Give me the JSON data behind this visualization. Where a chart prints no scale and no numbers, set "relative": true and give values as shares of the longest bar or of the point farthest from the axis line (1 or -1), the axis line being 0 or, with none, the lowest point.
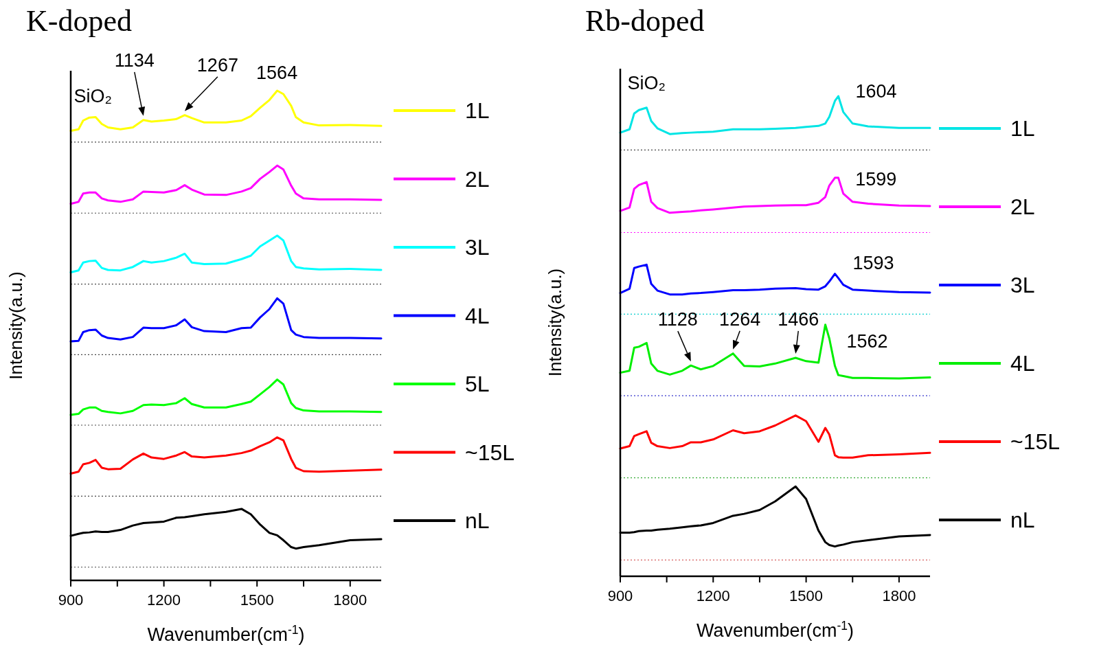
{
  "chart_data": [
    {
      "type": "line",
      "title": "K-doped",
      "xlabel": "Wavenumber(cm$^{-1}$)",
      "ylabel": "Intensity(a.u.)",
      "relative": true,
      "legend": "right",
      "xlim": [
        900,
        1900
      ],
      "xticks": [
        900,
        {
          "value": 1050,
          "label": null
        },
        1200,
        {
          "value": 1350,
          "label": null
        },
        1500,
        {
          "value": 1650,
          "label": null
        },
        1800
      ],
      "x": [
        900,
        925,
        940,
        960,
        980,
        1000,
        1020,
        1060,
        1100,
        1134,
        1160,
        1200,
        1240,
        1267,
        1290,
        1330,
        1400,
        1450,
        1480,
        1510,
        1540,
        1565,
        1585,
        1610,
        1625,
        1650,
        1700,
        1800,
        1900
      ],
      "series": [
        {
          "name": "1L",
          "color": "#ffff00",
          "values": [
            0.918,
            0.921,
            0.939,
            0.945,
            0.946,
            0.932,
            0.925,
            0.921,
            0.925,
            0.94,
            0.937,
            0.939,
            0.942,
            0.95,
            0.944,
            0.935,
            0.935,
            0.939,
            0.948,
            0.965,
            0.981,
            1.0,
            0.993,
            0.969,
            0.946,
            0.935,
            0.929,
            0.93,
            0.928
          ]
        },
        {
          "name": "2L",
          "color": "#ff00ff",
          "values": [
            0.769,
            0.773,
            0.79,
            0.792,
            0.792,
            0.78,
            0.776,
            0.773,
            0.778,
            0.794,
            0.793,
            0.792,
            0.797,
            0.807,
            0.798,
            0.788,
            0.787,
            0.794,
            0.801,
            0.82,
            0.834,
            0.847,
            0.839,
            0.806,
            0.79,
            0.78,
            0.778,
            0.778,
            0.777
          ]
        },
        {
          "name": "3L",
          "color": "#00ffff",
          "values": [
            0.629,
            0.633,
            0.649,
            0.652,
            0.653,
            0.638,
            0.634,
            0.633,
            0.64,
            0.652,
            0.649,
            0.652,
            0.659,
            0.667,
            0.649,
            0.646,
            0.647,
            0.656,
            0.663,
            0.682,
            0.694,
            0.704,
            0.694,
            0.652,
            0.64,
            0.637,
            0.635,
            0.636,
            0.634
          ]
        },
        {
          "name": "4L",
          "color": "#0000ff",
          "values": [
            0.488,
            0.489,
            0.507,
            0.511,
            0.512,
            0.5,
            0.495,
            0.492,
            0.497,
            0.516,
            0.515,
            0.515,
            0.521,
            0.533,
            0.517,
            0.509,
            0.507,
            0.515,
            0.516,
            0.537,
            0.554,
            0.576,
            0.565,
            0.511,
            0.502,
            0.497,
            0.495,
            0.495,
            0.494
          ]
        },
        {
          "name": "5L",
          "color": "#00ff00",
          "values": [
            0.338,
            0.34,
            0.349,
            0.353,
            0.353,
            0.346,
            0.344,
            0.341,
            0.346,
            0.358,
            0.359,
            0.358,
            0.362,
            0.372,
            0.36,
            0.353,
            0.353,
            0.36,
            0.365,
            0.38,
            0.395,
            0.41,
            0.4,
            0.362,
            0.352,
            0.347,
            0.345,
            0.345,
            0.344
          ]
        },
        {
          "name": "~15L",
          "color": "#ff0000",
          "values": [
            0.218,
            0.222,
            0.237,
            0.24,
            0.246,
            0.23,
            0.227,
            0.228,
            0.247,
            0.259,
            0.251,
            0.248,
            0.255,
            0.262,
            0.253,
            0.251,
            0.255,
            0.26,
            0.265,
            0.274,
            0.282,
            0.292,
            0.286,
            0.248,
            0.23,
            0.223,
            0.222,
            0.224,
            0.226
          ]
        },
        {
          "name": "nL",
          "color": "#000000",
          "values": [
            0.091,
            0.095,
            0.097,
            0.098,
            0.1,
            0.099,
            0.099,
            0.103,
            0.112,
            0.117,
            0.118,
            0.12,
            0.128,
            0.129,
            0.131,
            0.135,
            0.14,
            0.146,
            0.135,
            0.114,
            0.097,
            0.092,
            0.082,
            0.068,
            0.065,
            0.068,
            0.072,
            0.082,
            0.084
          ]
        }
      ],
      "ref_lines": [
        {
          "axis": "y",
          "value": 0.895,
          "line_style": "dotted",
          "color": "#444444"
        },
        {
          "axis": "y",
          "value": 0.75,
          "line_style": "dotted",
          "color": "#444444"
        },
        {
          "axis": "y",
          "value": 0.605,
          "line_style": "dotted",
          "color": "#444444"
        },
        {
          "axis": "y",
          "value": 0.461,
          "line_style": "dotted",
          "color": "#444444"
        },
        {
          "axis": "y",
          "value": 0.317,
          "line_style": "dotted",
          "color": "#444444"
        },
        {
          "axis": "y",
          "value": 0.172,
          "line_style": "dotted",
          "color": "#444444"
        },
        {
          "axis": "y",
          "value": 0.027,
          "line_style": "dotted",
          "color": "#444444"
        }
      ],
      "annotations": [
        {
          "text": "SiO₂",
          "x": 980,
          "y": 0.946
        },
        {
          "text": "1134",
          "x": 1134,
          "y": 0.94
        },
        {
          "text": "1267",
          "x": 1267,
          "y": 0.95
        },
        {
          "text": "1564",
          "x": 1564,
          "y": 1.0
        }
      ]
    },
    {
      "type": "line",
      "title": "Rb-doped",
      "xlabel": "Wavenumber(cm$^{-1}$)",
      "ylabel": "Intensity(a.u.)",
      "relative": true,
      "legend": "right",
      "xlim": [
        900,
        1900
      ],
      "xticks": [
        900,
        {
          "value": 1050,
          "label": null
        },
        1200,
        {
          "value": 1350,
          "label": null
        },
        1500,
        {
          "value": 1650,
          "label": null
        },
        1800
      ],
      "x": [
        900,
        930,
        945,
        960,
        985,
        1000,
        1020,
        1060,
        1100,
        1128,
        1160,
        1200,
        1264,
        1300,
        1350,
        1400,
        1466,
        1500,
        1540,
        1562,
        1575,
        1593,
        1604,
        1620,
        1650,
        1700,
        1800,
        1900
      ],
      "series": [
        {
          "name": "1L",
          "color": "#00e5e5",
          "values": [
            0.924,
            0.931,
            0.964,
            0.971,
            0.976,
            0.948,
            0.933,
            0.921,
            0.923,
            0.924,
            0.925,
            0.926,
            0.931,
            0.931,
            0.931,
            0.932,
            0.934,
            0.936,
            0.938,
            0.943,
            0.957,
            0.99,
            1.0,
            0.967,
            0.943,
            0.937,
            0.934,
            0.934
          ]
        },
        {
          "name": "2L",
          "color": "#ff00ff",
          "values": [
            0.761,
            0.768,
            0.807,
            0.815,
            0.821,
            0.78,
            0.767,
            0.757,
            0.759,
            0.76,
            0.762,
            0.764,
            0.768,
            0.77,
            0.771,
            0.772,
            0.773,
            0.773,
            0.778,
            0.79,
            0.814,
            0.83,
            0.83,
            0.797,
            0.78,
            0.776,
            0.772,
            0.771
          ]
        },
        {
          "name": "3L",
          "color": "#0000ff",
          "values": [
            0.59,
            0.599,
            0.642,
            0.645,
            0.649,
            0.609,
            0.595,
            0.587,
            0.587,
            0.589,
            0.59,
            0.592,
            0.596,
            0.596,
            0.597,
            0.599,
            0.6,
            0.598,
            0.597,
            0.604,
            0.614,
            0.63,
            0.621,
            0.607,
            0.597,
            0.595,
            0.592,
            0.591
          ]
        },
        {
          "name": "4L",
          "color": "#00ee00",
          "values": [
            0.424,
            0.428,
            0.476,
            0.478,
            0.486,
            0.443,
            0.428,
            0.42,
            0.428,
            0.439,
            0.431,
            0.438,
            0.464,
            0.438,
            0.437,
            0.443,
            0.455,
            0.448,
            0.445,
            0.524,
            0.495,
            0.438,
            0.419,
            0.417,
            0.413,
            0.413,
            0.412,
            0.414
          ]
        },
        {
          "name": "~15L",
          "color": "#ff0000",
          "values": [
            0.266,
            0.271,
            0.292,
            0.296,
            0.302,
            0.278,
            0.271,
            0.267,
            0.271,
            0.279,
            0.279,
            0.285,
            0.304,
            0.298,
            0.302,
            0.314,
            0.335,
            0.323,
            0.28,
            0.309,
            0.295,
            0.252,
            0.248,
            0.247,
            0.247,
            0.252,
            0.254,
            0.257
          ]
        },
        {
          "name": "nL",
          "color": "#000000",
          "values": [
            0.091,
            0.091,
            0.092,
            0.094,
            0.095,
            0.095,
            0.097,
            0.099,
            0.102,
            0.104,
            0.106,
            0.111,
            0.126,
            0.13,
            0.138,
            0.156,
            0.187,
            0.161,
            0.095,
            0.071,
            0.065,
            0.062,
            0.064,
            0.066,
            0.071,
            0.075,
            0.083,
            0.086
          ]
        }
      ],
      "ref_lines": [
        {
          "axis": "y",
          "value": 0.888,
          "line_style": "dotted",
          "color": "#444444"
        },
        {
          "axis": "y",
          "value": 0.716,
          "line_style": "dotted",
          "color": "#ff00ff"
        },
        {
          "axis": "y",
          "value": 0.546,
          "line_style": "dotted",
          "color": "#00cccc"
        },
        {
          "axis": "y",
          "value": 0.376,
          "line_style": "dotted",
          "color": "#3333cc"
        },
        {
          "axis": "y",
          "value": 0.205,
          "line_style": "dotted",
          "color": "#33aa33"
        },
        {
          "axis": "y",
          "value": 0.034,
          "line_style": "dotted",
          "color": "#cc3333"
        }
      ],
      "annotations": [
        {
          "text": "SiO₂",
          "x": 985,
          "y": 0.976
        },
        {
          "text": "1604",
          "x": 1604,
          "y": 1.0
        },
        {
          "text": "1599",
          "x": 1599,
          "y": 0.83
        },
        {
          "text": "1593",
          "x": 1593,
          "y": 0.63
        },
        {
          "text": "1128",
          "x": 1128,
          "y": 0.439
        },
        {
          "text": "1264",
          "x": 1264,
          "y": 0.464
        },
        {
          "text": "1466",
          "x": 1466,
          "y": 0.455
        },
        {
          "text": "1562",
          "x": 1562,
          "y": 0.524
        }
      ]
    }
  ]
}
